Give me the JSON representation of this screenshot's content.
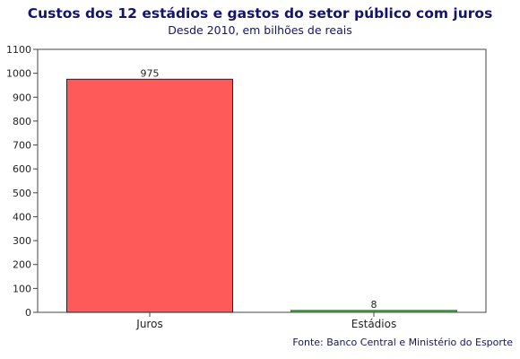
{
  "header": {
    "title": "Custos dos 12 estádios e gastos do setor público com juros",
    "subtitle": "Desde 2010, em bilhões de reais"
  },
  "footer": {
    "source": "Fonte: Banco Central e Ministério do Esporte"
  },
  "colors": {
    "juros_bar": "#fe5a5a",
    "estadios_bar": "#4f9e4f",
    "text": "#14146b"
  },
  "chart_data": {
    "type": "bar",
    "title": "Custos dos 12 estádios e gastos do setor público com juros",
    "subtitle": "Desde 2010, em bilhões de reais",
    "xlabel": "",
    "ylabel": "",
    "categories": [
      "Juros",
      "Estádios"
    ],
    "values": [
      975,
      8
    ],
    "data_labels": [
      "975",
      "8"
    ],
    "ylim": [
      0,
      1100
    ],
    "yticks": [
      0,
      100,
      200,
      300,
      400,
      500,
      600,
      700,
      800,
      900,
      1000,
      1100
    ],
    "ytick_labels": [
      "0",
      "100",
      "200",
      "300",
      "400",
      "500",
      "600",
      "700",
      "800",
      "900",
      "1000",
      "1100"
    ],
    "grid": false,
    "legend": "none"
  }
}
